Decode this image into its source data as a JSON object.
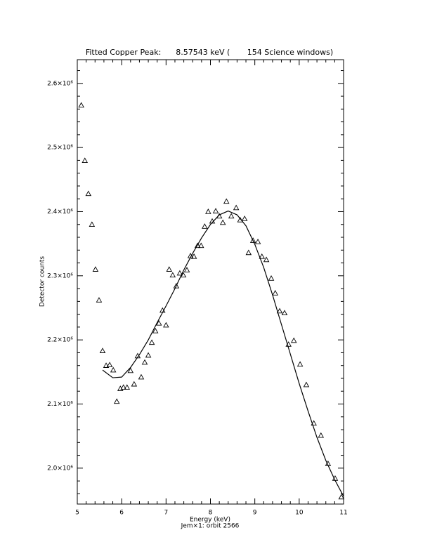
{
  "chart_data": {
    "type": "scatter",
    "title": "Fitted Copper Peak:      8.57543 keV (       154 Science windows)",
    "x_label": "Energy (keV)",
    "subtitle": "Jem×1: orbit 2566",
    "y_label": "Detector counts",
    "xlim": [
      5,
      11
    ],
    "xticks": [
      5,
      6,
      7,
      8,
      9,
      10,
      11
    ],
    "ylim": [
      1944000,
      2637000
    ],
    "yticks": [
      {
        "value": 2000000,
        "label": "2.0×10⁶"
      },
      {
        "value": 2100000,
        "label": "2.1×10⁶"
      },
      {
        "value": 2200000,
        "label": "2.2×10⁶"
      },
      {
        "value": 2300000,
        "label": "2.3×10⁶"
      },
      {
        "value": 2400000,
        "label": "2.4×10⁶"
      },
      {
        "value": 2500000,
        "label": "2.5×10⁶"
      },
      {
        "value": 2600000,
        "label": "2.6×10⁶"
      }
    ],
    "minor_ticks": 5,
    "grid": false,
    "series": [
      {
        "marker": "triangle",
        "color": "#000000",
        "x": [
          5.09,
          5.17,
          5.25,
          5.33,
          5.41,
          5.49,
          5.57,
          5.65,
          5.73,
          5.81,
          5.89,
          5.97,
          6.04,
          6.12,
          6.2,
          6.28,
          6.36,
          6.44,
          6.52,
          6.6,
          6.68,
          6.76,
          6.84,
          6.92,
          7.0,
          7.07,
          7.15,
          7.23,
          7.31,
          7.39,
          7.47,
          7.55,
          7.63,
          7.71,
          7.79,
          7.87,
          7.95,
          8.04,
          8.12,
          8.2,
          8.28,
          8.36,
          8.47,
          8.58,
          8.67,
          8.77,
          8.86,
          8.96,
          9.07,
          9.16,
          9.26,
          9.37,
          9.46,
          9.56,
          9.67,
          9.76,
          9.88,
          10.02,
          10.16,
          10.33,
          10.49,
          10.65,
          10.81,
          10.95
        ],
        "values": [
          2566000,
          2479600,
          2428000,
          2380000,
          2310000,
          2262000,
          2183000,
          2160000,
          2161000,
          2153000,
          2104000,
          2124000,
          2126000,
          2126000,
          2152000,
          2131000,
          2175000,
          2142000,
          2165000,
          2176000,
          2196000,
          2214000,
          2226000,
          2246000,
          2223000,
          2310000,
          2301000,
          2284000,
          2304000,
          2301000,
          2309000,
          2331000,
          2330000,
          2347000,
          2347000,
          2377000,
          2400000,
          2385000,
          2401000,
          2393000,
          2383000,
          2416000,
          2393000,
          2406000,
          2387000,
          2389000,
          2336000,
          2355000,
          2353000,
          2330000,
          2325000,
          2296000,
          2273000,
          2245000,
          2242000,
          2193000,
          2199000,
          2162000,
          2130000,
          2070000,
          2051000,
          2007000,
          1984000,
          1955000
        ]
      },
      {
        "type": "line",
        "color": "#000000",
        "x": [
          5.57,
          5.8,
          6.0,
          6.2,
          6.4,
          6.6,
          6.8,
          7.0,
          7.2,
          7.4,
          7.6,
          7.8,
          8.0,
          8.2,
          8.4,
          8.6,
          8.8,
          9.0,
          9.2,
          9.4,
          9.6,
          9.8,
          10.0,
          10.2,
          10.4,
          10.6,
          10.8,
          11.0
        ],
        "values": [
          2153000,
          2141000,
          2142000,
          2157000,
          2177000,
          2200000,
          2227000,
          2253000,
          2280000,
          2309000,
          2335000,
          2359000,
          2380000,
          2395000,
          2401000,
          2395000,
          2378000,
          2349000,
          2313000,
          2270000,
          2224000,
          2178000,
          2132000,
          2089000,
          2048000,
          2012000,
          1982000,
          1956000
        ]
      }
    ]
  }
}
